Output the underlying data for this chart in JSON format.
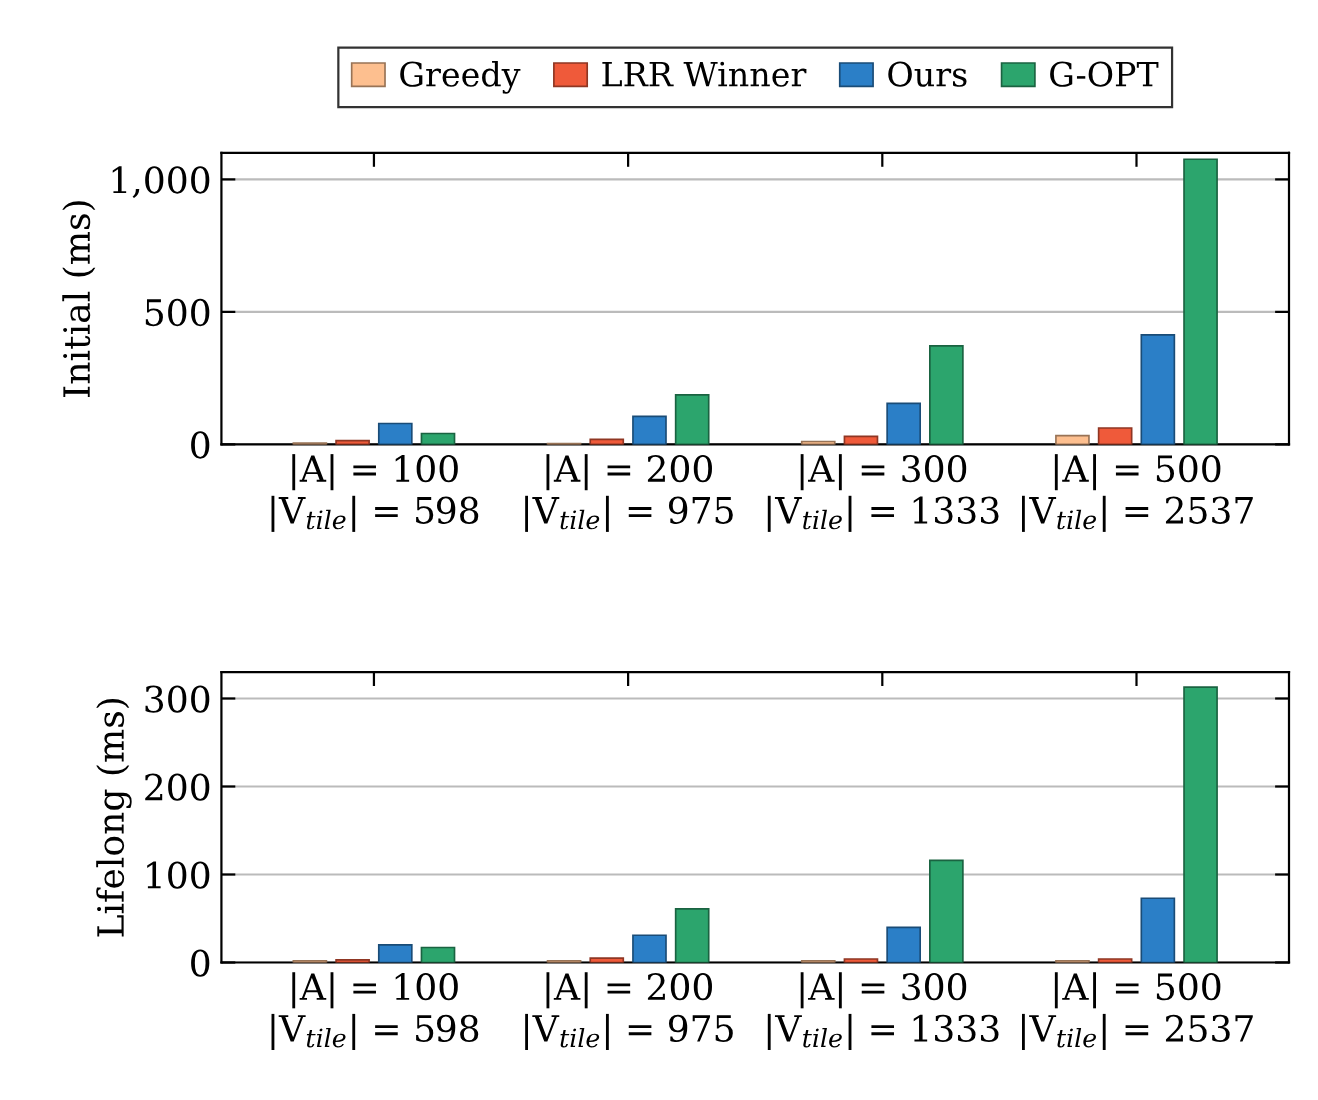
{
  "chart_data": [
    {
      "type": "bar",
      "ylabel": "Initial (ms)",
      "categories": [
        "|A| = 100\n|V$_{tile}$| = 598",
        "|A| = 200\n|V$_{tile}$| = 975",
        "|A| = 300\n|V$_{tile}$| = 1333",
        "|A| = 500\n|V$_{tile}$| = 2537"
      ],
      "series": [
        {
          "name": "Greedy",
          "color": "#fdbf8f",
          "values": [
            5,
            3,
            11,
            33
          ]
        },
        {
          "name": "LRR Winner",
          "color": "#ef5a3a",
          "values": [
            14,
            19,
            30,
            62
          ]
        },
        {
          "name": "Ours",
          "color": "#2b7fc7",
          "values": [
            79,
            106,
            155,
            413
          ]
        },
        {
          "name": "G-OPT",
          "color": "#2ca56d",
          "values": [
            41,
            187,
            372,
            1076
          ]
        }
      ],
      "ylim": [
        0,
        1100
      ],
      "yticks": [
        0,
        500,
        {
          "value": 1000,
          "label": "1,000"
        }
      ],
      "grid": "y",
      "legend": "top"
    },
    {
      "type": "bar",
      "ylabel": "Lifelong (ms)",
      "categories": [
        "|A| = 100\n|V$_{tile}$| = 598",
        "|A| = 200\n|V$_{tile}$| = 975",
        "|A| = 300\n|V$_{tile}$| = 1333",
        "|A| = 500\n|V$_{tile}$| = 2537"
      ],
      "series": [
        {
          "color": "#fdbf8f",
          "values": [
            2,
            2,
            2,
            2
          ]
        },
        {
          "color": "#ef5a3a",
          "values": [
            3,
            5,
            4,
            4
          ]
        },
        {
          "color": "#2b7fc7",
          "values": [
            20,
            31,
            40,
            73
          ]
        },
        {
          "color": "#2ca56d",
          "values": [
            17,
            61,
            116,
            313
          ]
        }
      ],
      "ylim": [
        0,
        330
      ],
      "yticks": [
        0,
        100,
        200,
        300
      ],
      "grid": "y"
    }
  ]
}
